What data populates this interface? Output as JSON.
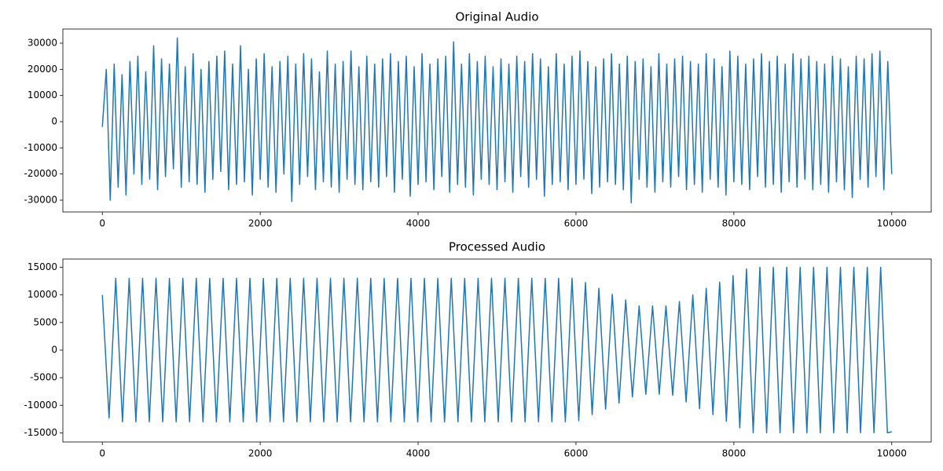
{
  "chart_data": [
    {
      "type": "line",
      "title": "Original Audio",
      "color": "#1f77b4",
      "xlim": [
        -500,
        10500
      ],
      "xticks": [
        0,
        2000,
        4000,
        6000,
        8000,
        10000
      ],
      "ylim": [
        -34500,
        35400
      ],
      "yticks": [
        -30000,
        -20000,
        -10000,
        0,
        10000,
        20000,
        30000
      ],
      "x": [
        0,
        50,
        100,
        150,
        200,
        250,
        300,
        350,
        400,
        450,
        500,
        550,
        600,
        650,
        700,
        750,
        800,
        850,
        900,
        950,
        1000,
        1050,
        1100,
        1150,
        1200,
        1250,
        1300,
        1350,
        1400,
        1450,
        1500,
        1550,
        1600,
        1650,
        1700,
        1750,
        1800,
        1850,
        1900,
        1950,
        2000,
        2050,
        2100,
        2150,
        2200,
        2250,
        2300,
        2350,
        2400,
        2450,
        2500,
        2550,
        2600,
        2650,
        2700,
        2750,
        2800,
        2850,
        2900,
        2950,
        3000,
        3050,
        3100,
        3150,
        3200,
        3250,
        3300,
        3350,
        3400,
        3450,
        3500,
        3550,
        3600,
        3650,
        3700,
        3750,
        3800,
        3850,
        3900,
        3950,
        4000,
        4050,
        4100,
        4150,
        4200,
        4250,
        4300,
        4350,
        4400,
        4450,
        4500,
        4550,
        4600,
        4650,
        4700,
        4750,
        4800,
        4850,
        4900,
        4950,
        5000,
        5050,
        5100,
        5150,
        5200,
        5250,
        5300,
        5350,
        5400,
        5450,
        5500,
        5550,
        5600,
        5650,
        5700,
        5750,
        5800,
        5850,
        5900,
        5950,
        6000,
        6050,
        6100,
        6150,
        6200,
        6250,
        6300,
        6350,
        6400,
        6450,
        6500,
        6550,
        6600,
        6650,
        6700,
        6750,
        6800,
        6850,
        6900,
        6950,
        7000,
        7050,
        7100,
        7150,
        7200,
        7250,
        7300,
        7350,
        7400,
        7450,
        7500,
        7550,
        7600,
        7650,
        7700,
        7750,
        7800,
        7850,
        7900,
        7950,
        8000,
        8050,
        8100,
        8150,
        8200,
        8250,
        8300,
        8350,
        8400,
        8450,
        8500,
        8550,
        8600,
        8650,
        8700,
        8750,
        8800,
        8850,
        8900,
        8950,
        9000,
        9050,
        9100,
        9150,
        9200,
        9250,
        9300,
        9350,
        9400,
        9450,
        9500,
        9550,
        9600,
        9650,
        9700,
        9750,
        9800,
        9850,
        9900,
        9950,
        10000
      ],
      "values": [
        -2000,
        20000,
        -30000,
        22000,
        -25000,
        18000,
        -28000,
        23000,
        -20000,
        25000,
        -24000,
        19000,
        -22000,
        29000,
        -26000,
        24000,
        -21000,
        22000,
        -18000,
        32000,
        -25000,
        21000,
        -23000,
        26000,
        -24000,
        20000,
        -27000,
        23000,
        -22000,
        25000,
        -19000,
        27000,
        -26000,
        22000,
        -24000,
        29000,
        -23000,
        20000,
        -28000,
        24000,
        -22000,
        26000,
        -25000,
        21000,
        -27000,
        23000,
        -20000,
        25000,
        -30500,
        22000,
        -24000,
        26000,
        -21000,
        24000,
        -26000,
        19000,
        -23000,
        27000,
        -25000,
        22000,
        -27000,
        23000,
        -22000,
        27000,
        -24000,
        21000,
        -26000,
        25000,
        -23000,
        22000,
        -25000,
        24000,
        -21000,
        26000,
        -27000,
        23000,
        -22000,
        25000,
        -28500,
        21000,
        -24000,
        26000,
        -23000,
        22000,
        -26000,
        24000,
        -21000,
        25000,
        -27000,
        30500,
        -24000,
        22000,
        -25000,
        26000,
        -28000,
        23000,
        -22000,
        25000,
        -24000,
        21000,
        -26000,
        24000,
        -23000,
        22000,
        -27000,
        25000,
        -21000,
        23000,
        -25000,
        26000,
        -22000,
        24000,
        -28500,
        21000,
        -24000,
        26000,
        -23000,
        22000,
        -26000,
        25000,
        -24000,
        27000,
        -22000,
        23000,
        -27500,
        21000,
        -25000,
        24000,
        -23000,
        26000,
        -24000,
        22000,
        -26000,
        25000,
        -31000,
        23000,
        -22000,
        24000,
        -25000,
        21000,
        -27000,
        26000,
        -23000,
        22000,
        -25000,
        24000,
        -21000,
        25000,
        -26000,
        23000,
        -24000,
        22000,
        -27000,
        26000,
        -22000,
        24000,
        -25000,
        21000,
        -28000,
        27000,
        -23000,
        25000,
        -24000,
        22000,
        -26000,
        24000,
        -21000,
        26000,
        -25000,
        23000,
        -24000,
        25000,
        -27000,
        22000,
        -23000,
        26000,
        -25000,
        24000,
        -22000,
        25000,
        -26000,
        23000,
        -24000,
        22000,
        -27000,
        25000,
        -23000,
        24000,
        -26000,
        21000,
        -29000,
        25000,
        -22000,
        24000,
        -25000,
        26000,
        -21000,
        27000,
        -26000,
        23000,
        -20000
      ]
    },
    {
      "type": "line",
      "title": "Processed Audio",
      "color": "#1f77b4",
      "xlim": [
        -500,
        10500
      ],
      "xticks": [
        0,
        2000,
        4000,
        6000,
        8000,
        10000
      ],
      "ylim": [
        -16650,
        16500
      ],
      "yticks": [
        -15000,
        -10000,
        -5000,
        0,
        5000,
        10000,
        15000
      ],
      "x": [
        0,
        85,
        170,
        255,
        340,
        425,
        510,
        595,
        680,
        765,
        850,
        935,
        1020,
        1105,
        1190,
        1275,
        1360,
        1445,
        1530,
        1615,
        1700,
        1785,
        1870,
        1955,
        2040,
        2125,
        2210,
        2295,
        2380,
        2465,
        2550,
        2635,
        2720,
        2805,
        2890,
        2975,
        3060,
        3145,
        3230,
        3315,
        3400,
        3485,
        3570,
        3655,
        3740,
        3825,
        3910,
        3995,
        4080,
        4165,
        4250,
        4335,
        4420,
        4505,
        4590,
        4675,
        4760,
        4845,
        4930,
        5015,
        5100,
        5185,
        5270,
        5355,
        5440,
        5525,
        5610,
        5695,
        5780,
        5865,
        5950,
        6035,
        6120,
        6205,
        6290,
        6375,
        6460,
        6545,
        6630,
        6715,
        6800,
        6885,
        6970,
        7055,
        7140,
        7225,
        7310,
        7395,
        7480,
        7565,
        7650,
        7735,
        7820,
        7905,
        7990,
        8075,
        8160,
        8245,
        8330,
        8415,
        8500,
        8585,
        8670,
        8755,
        8840,
        8925,
        9010,
        9095,
        9180,
        9265,
        9350,
        9435,
        9520,
        9605,
        9690,
        9775,
        9860,
        9945,
        10000
      ],
      "values": [
        10000,
        -12300,
        13000,
        -13000,
        13000,
        -13000,
        13000,
        -13000,
        13000,
        -13000,
        13000,
        -13000,
        13000,
        -13000,
        13000,
        -13000,
        13000,
        -13000,
        13000,
        -13000,
        13000,
        -13000,
        13000,
        -13000,
        13000,
        -13000,
        13000,
        -13000,
        13000,
        -13000,
        13000,
        -13000,
        13000,
        -13000,
        13000,
        -13000,
        13000,
        -13000,
        13000,
        -13000,
        13000,
        -13000,
        13000,
        -13000,
        13000,
        -13000,
        13000,
        -13000,
        13000,
        -13000,
        13000,
        -13000,
        13000,
        -13000,
        13000,
        -13000,
        13000,
        -13000,
        13000,
        -13000,
        13000,
        -13000,
        13000,
        -13000,
        13000,
        -13000,
        13000,
        -13000,
        13000,
        -13000,
        13000,
        -12800,
        12250,
        -11700,
        11200,
        -10700,
        10100,
        -9600,
        9100,
        -8500,
        8000,
        -8000,
        8000,
        -8000,
        8000,
        -8200,
        8800,
        -9400,
        10000,
        -10600,
        11200,
        -11700,
        12300,
        -12900,
        13500,
        -14100,
        14700,
        -15000,
        15000,
        -15000,
        15000,
        -15000,
        15000,
        -15000,
        15000,
        -15000,
        15000,
        -15000,
        15000,
        -15000,
        15000,
        -15000,
        15000,
        -15000,
        15000,
        -15000,
        15000,
        -15000,
        -14800
      ]
    }
  ]
}
